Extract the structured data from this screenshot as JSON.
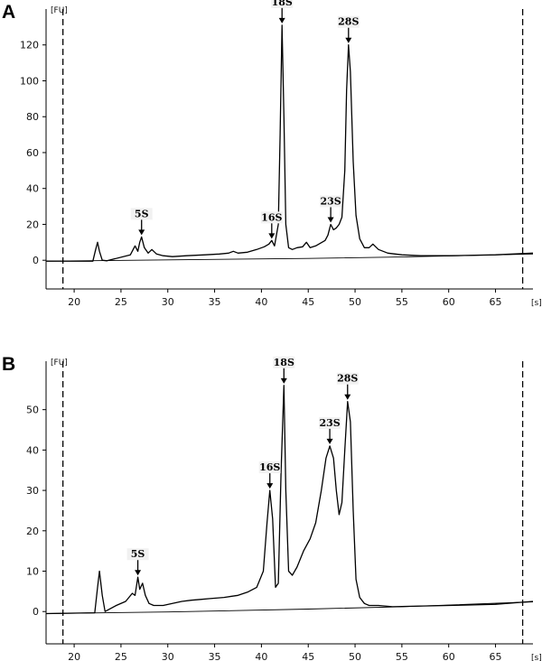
{
  "chart_data": [
    {
      "panel": "A",
      "type": "line",
      "ylabel": "[FU]",
      "xlabel": "[s]",
      "xlim": [
        17,
        69
      ],
      "ylim": [
        -16,
        140
      ],
      "xticks": [
        20,
        25,
        30,
        35,
        40,
        45,
        50,
        55,
        60,
        65
      ],
      "yticks": [
        0,
        20,
        40,
        60,
        80,
        100,
        120
      ],
      "markers": [
        18.8,
        67.9
      ],
      "baseline": [
        [
          17,
          -0.5
        ],
        [
          30,
          0.2
        ],
        [
          45,
          1.0
        ],
        [
          55,
          1.8
        ],
        [
          69,
          3.5
        ]
      ],
      "series": [
        {
          "x": [
            17,
            22.0,
            22.3,
            22.5,
            22.7,
            23.0,
            23.5,
            26.0,
            26.5,
            26.8,
            27.0,
            27.2,
            27.5,
            27.9,
            28.3,
            28.8,
            29.5,
            30.5,
            32.0,
            34.0,
            35.5,
            36.5,
            37.0,
            37.5,
            38.5,
            39.5,
            40.3,
            40.8,
            41.1,
            41.4,
            41.8,
            42.0,
            42.2,
            42.4,
            42.6,
            42.9,
            43.3,
            43.8,
            44.4,
            44.8,
            45.2,
            45.8,
            46.3,
            46.8,
            47.1,
            47.4,
            47.7,
            48.0,
            48.3,
            48.6,
            48.9,
            49.1,
            49.3,
            49.5,
            49.8,
            50.1,
            50.5,
            51.0,
            51.5,
            51.9,
            52.5,
            53.5,
            55.0,
            57.0,
            60.0,
            65.0,
            69.0
          ],
          "y": [
            -0.5,
            -0.5,
            6,
            10,
            5,
            0,
            -0.3,
            3,
            8,
            5,
            10,
            13,
            7,
            4,
            6,
            3.5,
            2.5,
            2,
            2.5,
            3,
            3.5,
            4,
            5,
            4,
            4.5,
            6,
            7.5,
            9,
            11,
            8,
            20,
            70,
            131,
            80,
            20,
            7,
            6,
            7,
            7.5,
            10,
            7,
            8,
            9.5,
            11,
            14,
            20,
            17,
            18,
            20,
            24,
            50,
            95,
            120,
            105,
            55,
            25,
            12,
            7,
            7,
            9,
            6,
            4,
            3,
            2.5,
            2.5,
            3,
            4
          ]
        }
      ],
      "annotations": [
        {
          "text": "5S",
          "x": 27.2,
          "y": 13
        },
        {
          "text": "16S",
          "x": 41.1,
          "y": 11
        },
        {
          "text": "18S",
          "x": 42.2,
          "y": 131
        },
        {
          "text": "23S",
          "x": 47.4,
          "y": 20
        },
        {
          "text": "28S",
          "x": 49.3,
          "y": 120
        }
      ]
    },
    {
      "panel": "B",
      "type": "line",
      "ylabel": "[FU]",
      "xlabel": "[s]",
      "xlim": [
        17,
        69
      ],
      "ylim": [
        -8,
        62
      ],
      "xticks": [
        20,
        25,
        30,
        35,
        40,
        45,
        50,
        55,
        60,
        65
      ],
      "yticks": [
        0,
        10,
        20,
        30,
        40,
        50
      ],
      "markers": [
        18.8,
        67.9
      ],
      "baseline": [
        [
          17,
          -0.5
        ],
        [
          30,
          -0.1
        ],
        [
          45,
          0.6
        ],
        [
          55,
          1.2
        ],
        [
          69,
          2.4
        ]
      ],
      "series": [
        {
          "x": [
            17,
            22.2,
            22.5,
            22.7,
            23.0,
            23.3,
            24.5,
            25.5,
            26.2,
            26.5,
            26.8,
            27.0,
            27.3,
            27.6,
            28.0,
            28.5,
            29.5,
            30.5,
            31.5,
            32.5,
            33.5,
            34.5,
            36.0,
            37.5,
            38.5,
            39.5,
            40.2,
            40.6,
            40.9,
            41.2,
            41.5,
            41.8,
            42.1,
            42.4,
            42.6,
            42.9,
            43.3,
            43.8,
            44.5,
            45.2,
            45.8,
            46.4,
            46.9,
            47.3,
            47.7,
            48.0,
            48.3,
            48.6,
            48.9,
            49.2,
            49.5,
            49.8,
            50.1,
            50.5,
            51.0,
            51.5,
            52.5,
            54.0,
            56.0,
            60.0,
            65.0,
            69.0
          ],
          "y": [
            -0.5,
            -0.3,
            6,
            10,
            4,
            0,
            1.5,
            2.5,
            4.5,
            4,
            8.5,
            5.5,
            7,
            4,
            2,
            1.5,
            1.5,
            2,
            2.5,
            2.8,
            3,
            3.2,
            3.5,
            4,
            4.8,
            6,
            10,
            22,
            30,
            23,
            6,
            7,
            35,
            56,
            30,
            10,
            9,
            11,
            15,
            18,
            22,
            30,
            38,
            41,
            38,
            30,
            24,
            27,
            40,
            52,
            47,
            25,
            8,
            3.5,
            2,
            1.5,
            1.5,
            1.2,
            1.3,
            1.5,
            1.8,
            2.5
          ]
        }
      ],
      "annotations": [
        {
          "text": "5S",
          "x": 26.8,
          "y": 8.5
        },
        {
          "text": "16S",
          "x": 40.9,
          "y": 30
        },
        {
          "text": "18S",
          "x": 42.4,
          "y": 56
        },
        {
          "text": "23S",
          "x": 47.3,
          "y": 41
        },
        {
          "text": "28S",
          "x": 49.2,
          "y": 52
        }
      ]
    }
  ]
}
